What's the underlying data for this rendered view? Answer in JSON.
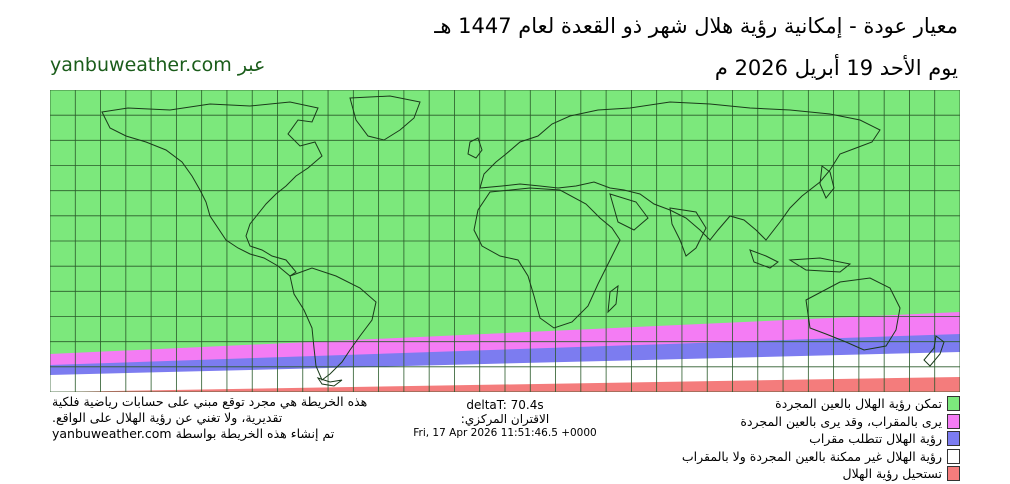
{
  "header": {
    "title": "معيار عودة - إمكانية رؤية هلال شهر ذو القعدة لعام 1447 هـ",
    "date": "يوم الأحد 19 أبريل 2026 م",
    "site": "yanbuweather.com عبر"
  },
  "disclaimer": {
    "line1": "هذه الخريطة هي مجرد توقع مبني على حسابات رياضية فلكية",
    "line2": "تقديرية، ولا تغني عن رؤية الهلال على الواقع.",
    "line3": "تم إنشاء هذه الخريطة بواسطة yanbuweather.com"
  },
  "info": {
    "delta_t": "deltaT: 70.4s",
    "conjunction_label": "الاقتران المركزي:",
    "conjunction_time": "Fri, 17 Apr 2026 11:51:46.5 +0000"
  },
  "legend": [
    {
      "label": "تمكن رؤية الهلال بالعين المجردة",
      "color": "#7ce87c"
    },
    {
      "label": "يرى بالمقراب، وقد يرى بالعين المجردة",
      "color": "#f47cf4"
    },
    {
      "label": "رؤية الهلال تتطلب مقراب",
      "color": "#7c7cf0"
    },
    {
      "label": "رؤية الهلال غير ممكنة بالعين المجردة ولا بالمقراب",
      "color": "#ffffff"
    },
    {
      "label": "تستحيل رؤية الهلال",
      "color": "#f47c7c"
    }
  ],
  "map_colors": {
    "visible": "#7ce87c",
    "telescope_maybe_eye": "#f47cf4",
    "telescope_only": "#7c7cf0",
    "not_visible": "#ffffff",
    "impossible": "#f47c7c",
    "grid": "#2a5a2a",
    "coast": "#1a3a1a"
  }
}
